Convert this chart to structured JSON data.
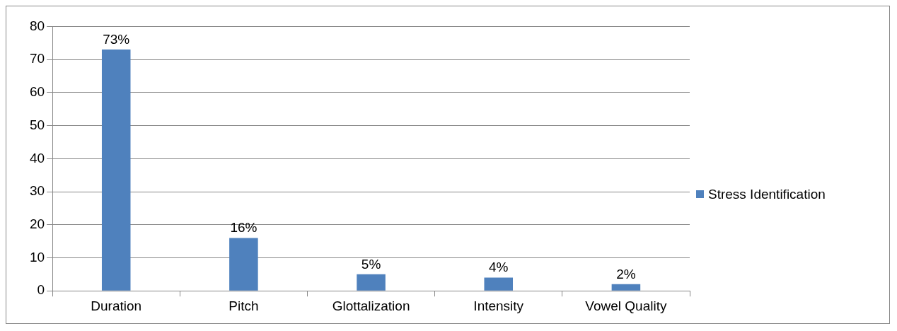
{
  "chart_data": {
    "type": "bar",
    "categories": [
      "Duration",
      "Pitch",
      "Glottalization",
      "Intensity",
      "Vowel Quality"
    ],
    "series": [
      {
        "name": "Stress Identification",
        "color": "#4f81bd",
        "values": [
          73,
          16,
          5,
          4,
          2
        ],
        "value_labels": [
          "73%",
          "16%",
          "5%",
          "4%",
          "2%"
        ]
      }
    ],
    "ylim": [
      0,
      80
    ],
    "yticks": [
      0,
      10,
      20,
      30,
      40,
      50,
      60,
      70,
      80
    ],
    "grid": "y",
    "legend": "right"
  }
}
